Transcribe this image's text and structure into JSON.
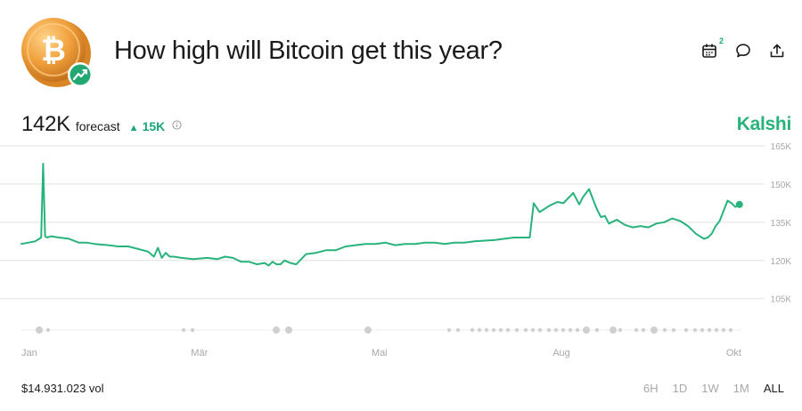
{
  "header": {
    "title": "How high will Bitcoin get this year?",
    "logo_glyph": "₿",
    "calendar_badge": "2"
  },
  "stats": {
    "forecast_value": "142K",
    "forecast_label": "forecast",
    "delta": "15K"
  },
  "brand": "Kalshi",
  "volume": "$14.931.023 vol",
  "ranges": [
    {
      "label": "6H",
      "active": false
    },
    {
      "label": "1D",
      "active": false
    },
    {
      "label": "1W",
      "active": false
    },
    {
      "label": "1M",
      "active": false
    },
    {
      "label": "ALL",
      "active": true
    }
  ],
  "colors": {
    "line": "#28b37c",
    "accent": "#1aa67a",
    "coin": "#f0a03c",
    "grid": "#e2e2e2",
    "muted": "#a8a8a8"
  },
  "chart_data": {
    "type": "line",
    "x_unit": "day of year",
    "xlim": [
      1,
      365
    ],
    "ylim": [
      100000,
      165000
    ],
    "y_ticks": [
      {
        "value": 165000,
        "label": "165K"
      },
      {
        "value": 150000,
        "label": "150K"
      },
      {
        "value": 135000,
        "label": "135K"
      },
      {
        "value": 120000,
        "label": "120K"
      },
      {
        "value": 105000,
        "label": "105K"
      }
    ],
    "x_ticks": [
      {
        "day": 1,
        "label": "Jan"
      },
      {
        "day": 91,
        "label": "Mär"
      },
      {
        "day": 182,
        "label": "Mai"
      },
      {
        "day": 274,
        "label": "Aug"
      },
      {
        "day": 365,
        "label": "Okt"
      }
    ],
    "series": [
      {
        "x": [
          1,
          8,
          11,
          12,
          13,
          14,
          16,
          20,
          25,
          30,
          34,
          38,
          45,
          50,
          55,
          60,
          65,
          68,
          70,
          72,
          74,
          76,
          78,
          82,
          88,
          95,
          100,
          104,
          108,
          112,
          116,
          120,
          124,
          126,
          128,
          130,
          132,
          134,
          137,
          140,
          145,
          150,
          155,
          160,
          165,
          170,
          175,
          180,
          185,
          190,
          195,
          200,
          205,
          210,
          215,
          220,
          225,
          230,
          240,
          250,
          258,
          260,
          263,
          268,
          272,
          275,
          280,
          283,
          285,
          288,
          290,
          292,
          294,
          296,
          298,
          302,
          306,
          310,
          314,
          318,
          322,
          326,
          330,
          334,
          338,
          342,
          346,
          348,
          350,
          352,
          354,
          356,
          358,
          360,
          362,
          364
        ],
        "y": [
          126500,
          127500,
          129000,
          158000,
          129500,
          129000,
          129500,
          129000,
          128500,
          127000,
          127000,
          126500,
          126000,
          125500,
          125500,
          124500,
          123500,
          121500,
          125000,
          121000,
          123000,
          121500,
          121500,
          121000,
          120500,
          121000,
          120500,
          121500,
          121000,
          119500,
          119500,
          118500,
          119000,
          118000,
          119500,
          118500,
          118500,
          120000,
          119000,
          118500,
          122500,
          123000,
          124000,
          124000,
          125500,
          126000,
          126500,
          126500,
          127000,
          126000,
          126500,
          126500,
          127000,
          127000,
          126500,
          127000,
          127000,
          127500,
          128000,
          129000,
          129000,
          142500,
          139000,
          141500,
          143000,
          142500,
          146500,
          142000,
          145000,
          148000,
          144000,
          140000,
          137000,
          137500,
          134500,
          136000,
          134000,
          133000,
          133500,
          133000,
          134500,
          135000,
          136500,
          135500,
          133500,
          130500,
          128500,
          129000,
          130500,
          133500,
          135500,
          139500,
          143500,
          142500,
          141000,
          142000
        ]
      }
    ]
  }
}
